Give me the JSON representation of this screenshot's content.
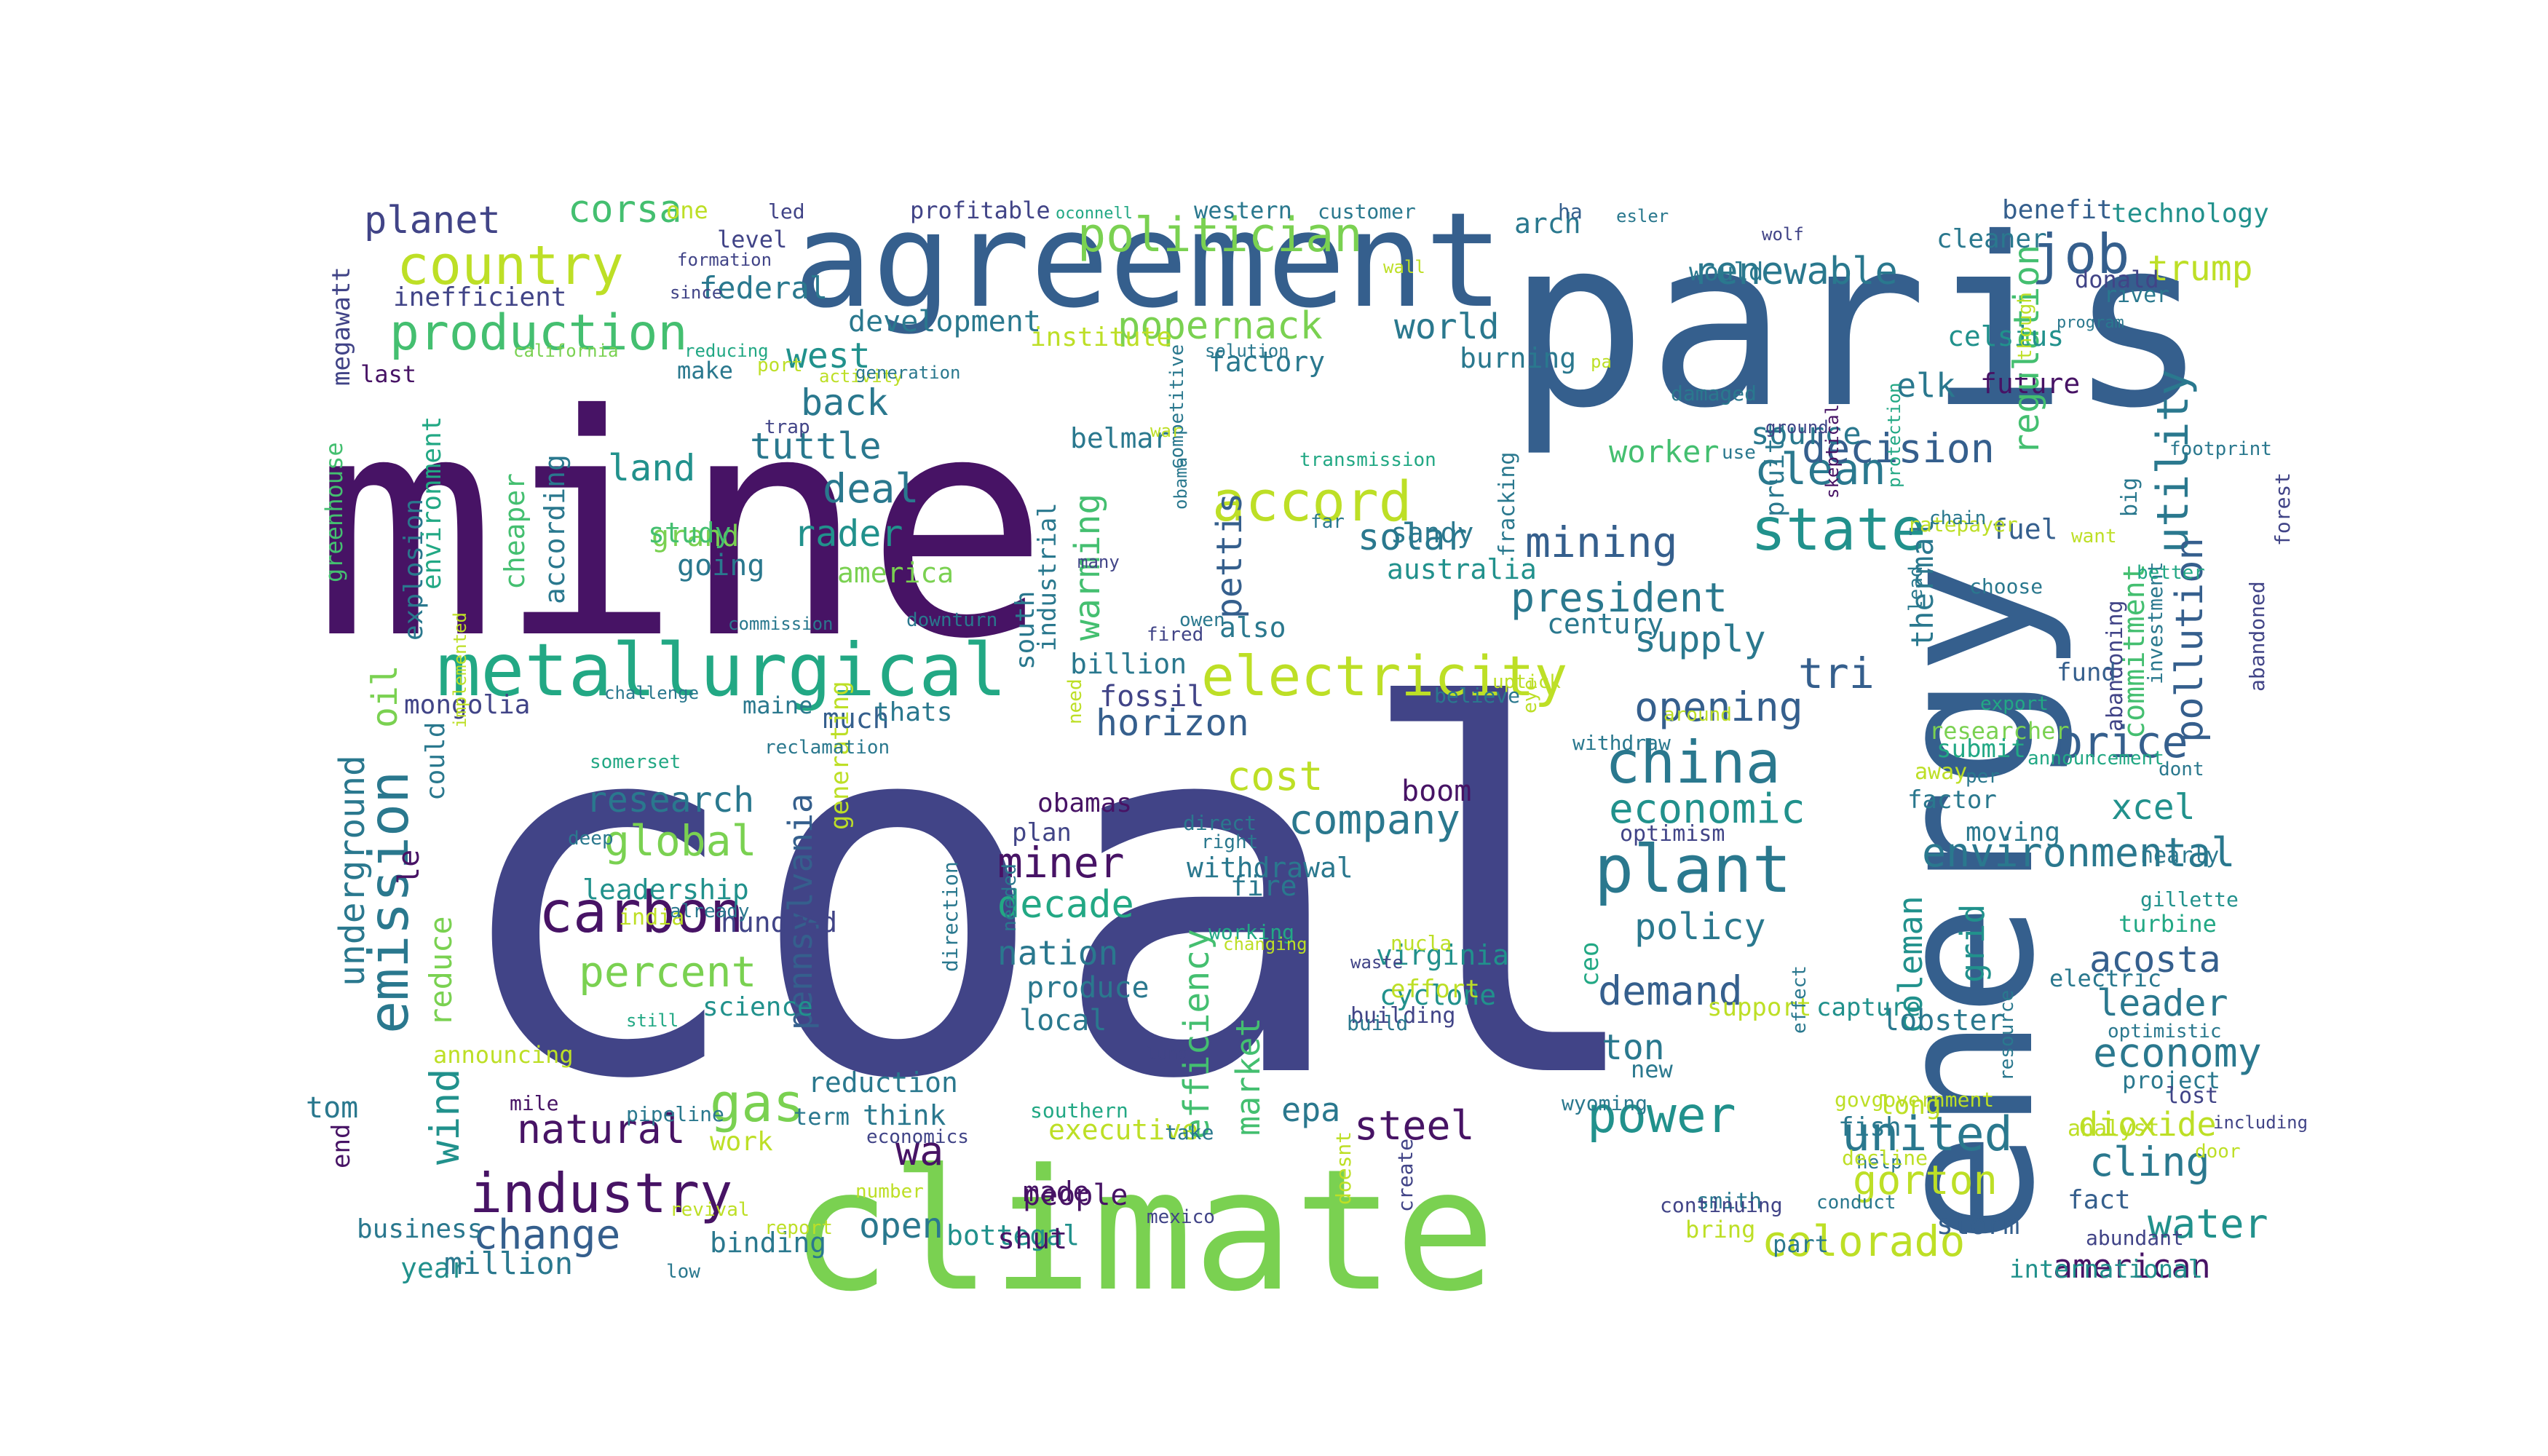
{
  "palette": {
    "dark_purple": "#471365",
    "indigo": "#414487",
    "slate_blue": "#355f8d",
    "teal_blue": "#2a788e",
    "teal": "#21918c",
    "sea_green": "#22a884",
    "green": "#44bf70",
    "light_green": "#7ad151",
    "lime": "#bddf26",
    "yellow": "#fde725"
  },
  "words": [
    {
      "text": "coal",
      "color": "#414487"
    },
    {
      "text": "mine",
      "color": "#471365"
    },
    {
      "text": "paris",
      "color": "#355f8d"
    },
    {
      "text": "energy",
      "color": "#355f8d"
    },
    {
      "text": "agreement",
      "color": "#355f8d"
    },
    {
      "text": "climate",
      "color": "#7ad151"
    },
    {
      "text": "metallurgical",
      "color": "#22a884"
    },
    {
      "text": "country",
      "color": "#bddf26"
    },
    {
      "text": "production",
      "color": "#44bf70"
    },
    {
      "text": "politician",
      "color": "#7ad151"
    },
    {
      "text": "job",
      "color": "#355f8d"
    },
    {
      "text": "planet",
      "color": "#414487"
    },
    {
      "text": "corsa",
      "color": "#44bf70"
    },
    {
      "text": "technology",
      "color": "#21918c"
    },
    {
      "text": "renewable",
      "color": "#2a788e"
    },
    {
      "text": "trump",
      "color": "#bddf26"
    },
    {
      "text": "utility",
      "color": "#2a788e"
    },
    {
      "text": "electricity",
      "color": "#bddf26"
    },
    {
      "text": "accord",
      "color": "#bddf26"
    },
    {
      "text": "state",
      "color": "#21918c"
    },
    {
      "text": "clean",
      "color": "#2a788e"
    },
    {
      "text": "popernack",
      "color": "#7ad151"
    },
    {
      "text": "world",
      "color": "#2a788e"
    },
    {
      "text": "mining",
      "color": "#355f8d"
    },
    {
      "text": "president",
      "color": "#2a788e"
    },
    {
      "text": "decision",
      "color": "#355f8d"
    },
    {
      "text": "pollution",
      "color": "#355f8d"
    },
    {
      "text": "commitment",
      "color": "#44bf70"
    },
    {
      "text": "emission",
      "color": "#2a788e"
    },
    {
      "text": "carbon",
      "color": "#471365"
    },
    {
      "text": "industry",
      "color": "#471365"
    },
    {
      "text": "china",
      "color": "#2a788e"
    },
    {
      "text": "plant",
      "color": "#2a788e"
    },
    {
      "text": "economic",
      "color": "#21918c"
    },
    {
      "text": "environmental",
      "color": "#2a788e"
    },
    {
      "text": "price",
      "color": "#355f8d"
    },
    {
      "text": "gas",
      "color": "#7ad151"
    },
    {
      "text": "power",
      "color": "#21918c"
    },
    {
      "text": "united",
      "color": "#2a788e"
    },
    {
      "text": "change",
      "color": "#355f8d"
    },
    {
      "text": "colorado",
      "color": "#bddf26"
    },
    {
      "text": "water",
      "color": "#21918c"
    },
    {
      "text": "economy",
      "color": "#2a788e"
    },
    {
      "text": "gorton",
      "color": "#bddf26"
    },
    {
      "text": "cling",
      "color": "#2a788e"
    },
    {
      "text": "miner",
      "color": "#471365"
    },
    {
      "text": "decade",
      "color": "#22a884"
    },
    {
      "text": "nation",
      "color": "#2a788e"
    },
    {
      "text": "company",
      "color": "#2a788e"
    },
    {
      "text": "global",
      "color": "#7ad151"
    },
    {
      "text": "research",
      "color": "#2a788e"
    },
    {
      "text": "percent",
      "color": "#7ad151"
    },
    {
      "text": "cost",
      "color": "#bddf26"
    },
    {
      "text": "horizon",
      "color": "#355f8d"
    },
    {
      "text": "opening",
      "color": "#355f8d"
    },
    {
      "text": "supply",
      "color": "#2a788e"
    },
    {
      "text": "tri",
      "color": "#355f8d"
    },
    {
      "text": "pennsylvania",
      "color": "#355f8d"
    },
    {
      "text": "efficiency",
      "color": "#44bf70"
    },
    {
      "text": "market",
      "color": "#44bf70"
    },
    {
      "text": "wind",
      "color": "#21918c"
    },
    {
      "text": "natural",
      "color": "#471365"
    },
    {
      "text": "steel",
      "color": "#471365"
    },
    {
      "text": "demand",
      "color": "#355f8d"
    },
    {
      "text": "policy",
      "color": "#2a788e"
    },
    {
      "text": "acosta",
      "color": "#355f8d"
    },
    {
      "text": "leader",
      "color": "#2a788e"
    },
    {
      "text": "dioxide",
      "color": "#bddf26"
    },
    {
      "text": "xcel",
      "color": "#21918c"
    },
    {
      "text": "underground",
      "color": "#2a788e"
    },
    {
      "text": "oil",
      "color": "#7ad151"
    },
    {
      "text": "deal",
      "color": "#2a788e"
    },
    {
      "text": "land",
      "color": "#21918c"
    },
    {
      "text": "back",
      "color": "#2a788e"
    },
    {
      "text": "tuttle",
      "color": "#2a788e"
    },
    {
      "text": "rader",
      "color": "#21918c"
    },
    {
      "text": "west",
      "color": "#21918c"
    },
    {
      "text": "solar",
      "color": "#2a788e"
    },
    {
      "text": "source",
      "color": "#2a788e"
    },
    {
      "text": "worker",
      "color": "#44bf70"
    },
    {
      "text": "elk",
      "color": "#2a788e"
    },
    {
      "text": "future",
      "color": "#471365"
    },
    {
      "text": "regulation",
      "color": "#44bf70"
    },
    {
      "text": "thermal",
      "color": "#2a788e"
    },
    {
      "text": "coleman",
      "color": "#21918c"
    },
    {
      "text": "grid",
      "color": "#21918c"
    },
    {
      "text": "ton",
      "color": "#2a788e"
    },
    {
      "text": "year",
      "color": "#21918c"
    },
    {
      "text": "million",
      "color": "#2a788e"
    },
    {
      "text": "american",
      "color": "#471365"
    },
    {
      "text": "wa",
      "color": "#471365"
    },
    {
      "text": "open",
      "color": "#2a788e"
    },
    {
      "text": "epa",
      "color": "#2a788e"
    },
    {
      "text": "warming",
      "color": "#44bf70"
    },
    {
      "text": "pettis",
      "color": "#355f8d"
    },
    {
      "text": "reduce",
      "color": "#7ad151"
    },
    {
      "text": "arch",
      "color": "#2a788e"
    },
    {
      "text": "mongolia",
      "color": "#414487"
    },
    {
      "text": "fossil",
      "color": "#414487"
    },
    {
      "text": "obamas",
      "color": "#471365"
    },
    {
      "text": "boom",
      "color": "#471365"
    },
    {
      "text": "withdrawal",
      "color": "#2a788e"
    },
    {
      "text": "virginia",
      "color": "#21918c"
    },
    {
      "text": "cyclone",
      "color": "#21918c"
    },
    {
      "text": "executive",
      "color": "#bddf26"
    },
    {
      "text": "people",
      "color": "#471365"
    },
    {
      "text": "bottegal",
      "color": "#21918c"
    },
    {
      "text": "shut",
      "color": "#471365"
    },
    {
      "text": "made",
      "color": "#471365"
    },
    {
      "text": "reduction",
      "color": "#2a788e"
    },
    {
      "text": "think",
      "color": "#2a788e"
    },
    {
      "text": "work",
      "color": "#bddf26"
    },
    {
      "text": "binding",
      "color": "#2a788e"
    },
    {
      "text": "business",
      "color": "#2a788e"
    },
    {
      "text": "fish",
      "color": "#2a788e"
    },
    {
      "text": "lobster",
      "color": "#2a788e"
    },
    {
      "text": "storm",
      "color": "#355f8d"
    },
    {
      "text": "fact",
      "color": "#355f8d"
    },
    {
      "text": "international",
      "color": "#21918c"
    },
    {
      "text": "science",
      "color": "#21918c"
    },
    {
      "text": "local",
      "color": "#2a788e"
    },
    {
      "text": "produce",
      "color": "#2a788e"
    },
    {
      "text": "fire",
      "color": "#2a788e"
    },
    {
      "text": "sandy",
      "color": "#2a788e"
    },
    {
      "text": "australia",
      "color": "#21918c"
    },
    {
      "text": "century",
      "color": "#2a788e"
    },
    {
      "text": "also",
      "color": "#2a788e"
    },
    {
      "text": "billion",
      "color": "#2a788e"
    },
    {
      "text": "much",
      "color": "#355f8d"
    },
    {
      "text": "thats",
      "color": "#2a788e"
    },
    {
      "text": "maine",
      "color": "#2a788e"
    },
    {
      "text": "factory",
      "color": "#2a788e"
    },
    {
      "text": "development",
      "color": "#2a788e"
    },
    {
      "text": "institute",
      "color": "#bddf26"
    },
    {
      "text": "belmar",
      "color": "#2a788e"
    },
    {
      "text": "south",
      "color": "#2a788e"
    },
    {
      "text": "industrial",
      "color": "#2a788e"
    },
    {
      "text": "leadership",
      "color": "#21918c"
    },
    {
      "text": "hundred",
      "color": "#414487"
    },
    {
      "text": "plan",
      "color": "#414487"
    },
    {
      "text": "america",
      "color": "#7ad151"
    },
    {
      "text": "going",
      "color": "#2a788e"
    },
    {
      "text": "grand",
      "color": "#7ad151"
    },
    {
      "text": "study",
      "color": "#44bf70"
    },
    {
      "text": "cheaper",
      "color": "#44bf70"
    },
    {
      "text": "according",
      "color": "#2a788e"
    },
    {
      "text": "explosion",
      "color": "#2a788e"
    },
    {
      "text": "environment",
      "color": "#22a884"
    },
    {
      "text": "greenhouse",
      "color": "#44bf70"
    },
    {
      "text": "megawatt",
      "color": "#414487"
    },
    {
      "text": "inefficient",
      "color": "#414487"
    },
    {
      "text": "federal",
      "color": "#2a788e"
    },
    {
      "text": "last",
      "color": "#471365"
    },
    {
      "text": "make",
      "color": "#2a788e"
    },
    {
      "text": "one",
      "color": "#bddf26"
    },
    {
      "text": "level",
      "color": "#414487"
    },
    {
      "text": "profitable",
      "color": "#414487"
    },
    {
      "text": "western",
      "color": "#2a788e"
    },
    {
      "text": "customer",
      "color": "#2a788e"
    },
    {
      "text": "benefit",
      "color": "#355f8d"
    },
    {
      "text": "river",
      "color": "#2a788e"
    },
    {
      "text": "donald",
      "color": "#414487"
    },
    {
      "text": "forest",
      "color": "#414487"
    },
    {
      "text": "abandoned",
      "color": "#414487"
    },
    {
      "text": "abandoning",
      "color": "#414487"
    },
    {
      "text": "investment",
      "color": "#2a788e"
    },
    {
      "text": "fund",
      "color": "#355f8d"
    },
    {
      "text": "fuel",
      "color": "#355f8d"
    },
    {
      "text": "big",
      "color": "#2a788e"
    },
    {
      "text": "ratepayer",
      "color": "#bddf26"
    },
    {
      "text": "pruitt",
      "color": "#2a788e"
    },
    {
      "text": "burning",
      "color": "#2a788e"
    },
    {
      "text": "celsius",
      "color": "#21918c"
    },
    {
      "text": "would",
      "color": "#2a788e"
    },
    {
      "text": "cleaner",
      "color": "#2a788e"
    },
    {
      "text": "ha",
      "color": "#355f8d"
    },
    {
      "text": "researcher",
      "color": "#7ad151"
    },
    {
      "text": "submit",
      "color": "#22a884"
    },
    {
      "text": "away",
      "color": "#bddf26"
    },
    {
      "text": "factor",
      "color": "#2a788e"
    },
    {
      "text": "moving",
      "color": "#2a788e"
    },
    {
      "text": "nearly",
      "color": "#2a788e"
    },
    {
      "text": "gillette",
      "color": "#21918c"
    },
    {
      "text": "turbine",
      "color": "#22a884"
    },
    {
      "text": "electric",
      "color": "#2a788e"
    },
    {
      "text": "capture",
      "color": "#21918c"
    },
    {
      "text": "support",
      "color": "#bddf26"
    },
    {
      "text": "new",
      "color": "#2a788e"
    },
    {
      "text": "project",
      "color": "#2a788e"
    },
    {
      "text": "long",
      "color": "#bddf26"
    },
    {
      "text": "analyst",
      "color": "#bddf26"
    },
    {
      "text": "smith",
      "color": "#2a788e"
    },
    {
      "text": "bring",
      "color": "#bddf26"
    },
    {
      "text": "part",
      "color": "#2a788e"
    },
    {
      "text": "help",
      "color": "#2a788e"
    },
    {
      "text": "tom",
      "color": "#2a788e"
    },
    {
      "text": "le",
      "color": "#471365"
    },
    {
      "text": "could",
      "color": "#2a788e"
    },
    {
      "text": "withdraw",
      "color": "#2a788e"
    },
    {
      "text": "end",
      "color": "#471365"
    },
    {
      "text": "generating",
      "color": "#bddf26"
    },
    {
      "text": "ceo",
      "color": "#22a884"
    },
    {
      "text": "fracking",
      "color": "#2a788e"
    },
    {
      "text": "announcing",
      "color": "#bddf26"
    },
    {
      "text": "mile",
      "color": "#471365"
    },
    {
      "text": "pipeline",
      "color": "#2a788e"
    },
    {
      "text": "term",
      "color": "#2a788e"
    },
    {
      "text": "economics",
      "color": "#414487"
    },
    {
      "text": "revival",
      "color": "#bddf26"
    },
    {
      "text": "report",
      "color": "#bddf26"
    },
    {
      "text": "low",
      "color": "#2a788e"
    },
    {
      "text": "number",
      "color": "#bddf26"
    },
    {
      "text": "southern",
      "color": "#22a884"
    },
    {
      "text": "take",
      "color": "#2a788e"
    },
    {
      "text": "mexico",
      "color": "#414487"
    },
    {
      "text": "doesnt",
      "color": "#bddf26"
    },
    {
      "text": "create",
      "color": "#414487"
    },
    {
      "text": "continuing",
      "color": "#414487"
    },
    {
      "text": "conduct",
      "color": "#2a788e"
    },
    {
      "text": "decline",
      "color": "#bddf26"
    },
    {
      "text": "abundant",
      "color": "#414487"
    },
    {
      "text": "door",
      "color": "#bddf26"
    },
    {
      "text": "lost",
      "color": "#414487"
    },
    {
      "text": "including",
      "color": "#414487"
    },
    {
      "text": "govgovernment",
      "color": "#bddf26"
    },
    {
      "text": "wyoming",
      "color": "#2a788e"
    },
    {
      "text": "lung",
      "color": "#414487"
    },
    {
      "text": "building",
      "color": "#414487"
    },
    {
      "text": "build",
      "color": "#2a788e"
    },
    {
      "text": "waste",
      "color": "#414487"
    },
    {
      "text": "effort",
      "color": "#bddf26"
    },
    {
      "text": "nucla",
      "color": "#bddf26"
    },
    {
      "text": "working",
      "color": "#22a884"
    },
    {
      "text": "changing",
      "color": "#bddf26"
    },
    {
      "text": "direction",
      "color": "#2a788e"
    },
    {
      "text": "india",
      "color": "#bddf26"
    },
    {
      "text": "already",
      "color": "#2a788e"
    },
    {
      "text": "still",
      "color": "#22a884"
    },
    {
      "text": "deep",
      "color": "#2a788e"
    },
    {
      "text": "somerset",
      "color": "#22a884"
    },
    {
      "text": "reclamation",
      "color": "#2a788e"
    },
    {
      "text": "challenge",
      "color": "#2a788e"
    },
    {
      "text": "needed",
      "color": "#2a788e"
    },
    {
      "text": "commission",
      "color": "#2a788e"
    },
    {
      "text": "downturn",
      "color": "#2a788e"
    },
    {
      "text": "fired",
      "color": "#414487"
    },
    {
      "text": "owen",
      "color": "#2a788e"
    },
    {
      "text": "need",
      "color": "#bddf26"
    },
    {
      "text": "direct",
      "color": "#2a788e"
    },
    {
      "text": "right",
      "color": "#2a788e"
    },
    {
      "text": "optimism",
      "color": "#414487"
    },
    {
      "text": "believe",
      "color": "#2a788e"
    },
    {
      "text": "uptick",
      "color": "#bddf26"
    },
    {
      "text": "around",
      "color": "#bddf26"
    },
    {
      "text": "eye",
      "color": "#bddf26"
    },
    {
      "text": "export",
      "color": "#22a884"
    },
    {
      "text": "per",
      "color": "#2a788e"
    },
    {
      "text": "announcement",
      "color": "#22a884"
    },
    {
      "text": "dont",
      "color": "#2a788e"
    },
    {
      "text": "resource",
      "color": "#2a788e"
    },
    {
      "text": "optimistic",
      "color": "#2a788e"
    },
    {
      "text": "effect",
      "color": "#2a788e"
    },
    {
      "text": "lead",
      "color": "#2a788e"
    },
    {
      "text": "choose",
      "color": "#2a788e"
    },
    {
      "text": "better",
      "color": "#22a884"
    },
    {
      "text": "want",
      "color": "#bddf26"
    },
    {
      "text": "chain",
      "color": "#2a788e"
    },
    {
      "text": "footprint",
      "color": "#2a788e"
    },
    {
      "text": "though",
      "color": "#bddf26"
    },
    {
      "text": "program",
      "color": "#2a788e"
    },
    {
      "text": "use",
      "color": "#2a788e"
    },
    {
      "text": "skeptical",
      "color": "#471365"
    },
    {
      "text": "wolf",
      "color": "#414487"
    },
    {
      "text": "esler",
      "color": "#2a788e"
    },
    {
      "text": "ground",
      "color": "#414487"
    },
    {
      "text": "protection",
      "color": "#22a884"
    },
    {
      "text": "damaged",
      "color": "#2a788e"
    },
    {
      "text": "pa",
      "color": "#bddf26"
    },
    {
      "text": "wall",
      "color": "#bddf26"
    },
    {
      "text": "solution",
      "color": "#2a788e"
    },
    {
      "text": "transmission",
      "color": "#22a884"
    },
    {
      "text": "far",
      "color": "#2a788e"
    },
    {
      "text": "obama",
      "color": "#2a788e"
    },
    {
      "text": "competitive",
      "color": "#2a788e"
    },
    {
      "text": "war",
      "color": "#bddf26"
    },
    {
      "text": "many",
      "color": "#414487"
    },
    {
      "text": "activity",
      "color": "#bddf26"
    },
    {
      "text": "generation",
      "color": "#2a788e"
    },
    {
      "text": "port",
      "color": "#bddf26"
    },
    {
      "text": "trap",
      "color": "#414487"
    },
    {
      "text": "reducing",
      "color": "#22a884"
    },
    {
      "text": "california",
      "color": "#7ad151"
    },
    {
      "text": "since",
      "color": "#414487"
    },
    {
      "text": "formation",
      "color": "#414487"
    },
    {
      "text": "led",
      "color": "#414487"
    },
    {
      "text": "oconnell",
      "color": "#22a884"
    },
    {
      "text": "implemented",
      "color": "#bddf26"
    },
    {
      "text": "asia",
      "color": "#bddf26"
    }
  ]
}
